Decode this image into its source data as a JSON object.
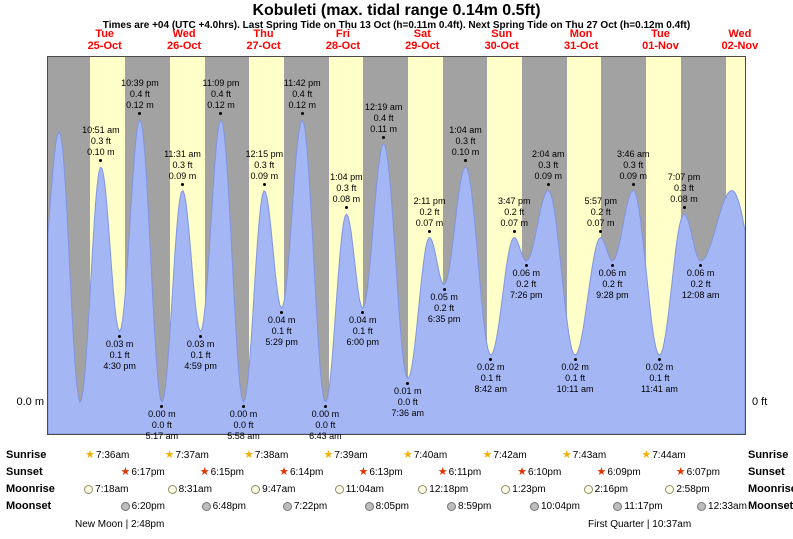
{
  "header": {
    "title": "Kobuleti (max. tidal range 0.14m 0.5ft)",
    "subtitle": "Times are +04 (UTC +4.0hrs). Last Spring Tide on Thu 13 Oct (h=0.11m 0.4ft). Next Spring Tide on Thu 27 Oct (h=0.12m 0.4ft)"
  },
  "chart_data": {
    "type": "area",
    "title": "Kobuleti (max. tidal range 0.14m 0.5ft)",
    "left_axis_label": "0.0 m",
    "right_axis_label": "0 ft",
    "ylim_m": [
      0,
      0.155
    ],
    "days": [
      {
        "name": "Tue",
        "date": "25-Oct"
      },
      {
        "name": "Wed",
        "date": "26-Oct"
      },
      {
        "name": "Thu",
        "date": "27-Oct"
      },
      {
        "name": "Fri",
        "date": "28-Oct"
      },
      {
        "name": "Sat",
        "date": "29-Oct"
      },
      {
        "name": "Sun",
        "date": "30-Oct"
      },
      {
        "name": "Mon",
        "date": "31-Oct"
      },
      {
        "name": "Tue",
        "date": "01-Nov"
      },
      {
        "name": "Wed",
        "date": "02-Nov"
      }
    ],
    "extremes": [
      {
        "t": -0.35,
        "h": 0.03,
        "type": "L"
      },
      {
        "t": -0.073,
        "h": 0.115,
        "type": "H"
      },
      {
        "t": 0.191,
        "h": 0.0,
        "type": "L"
      },
      {
        "t": 0.4521,
        "h": 0.1,
        "type": "H",
        "lines": [
          "10:51 am",
          "0.3 ft",
          "0.10 m"
        ]
      },
      {
        "t": 0.6875,
        "h": 0.03,
        "type": "L",
        "lines": [
          "0.03 m",
          "0.1 ft",
          "4:30 pm"
        ]
      },
      {
        "t": 0.9438,
        "h": 0.12,
        "type": "H",
        "lines": [
          "10:39 pm",
          "0.4 ft",
          "0.12 m"
        ]
      },
      {
        "t": 1.2201,
        "h": 0.0,
        "type": "L",
        "lines": [
          "0.00 m",
          "0.0 ft",
          "5:17 am"
        ]
      },
      {
        "t": 1.4799,
        "h": 0.09,
        "type": "H",
        "lines": [
          "11:31 am",
          "0.3 ft",
          "0.09 m"
        ]
      },
      {
        "t": 1.7076,
        "h": 0.03,
        "type": "L",
        "lines": [
          "0.03 m",
          "0.1 ft",
          "4:59 pm"
        ]
      },
      {
        "t": 1.9646,
        "h": 0.12,
        "type": "H",
        "lines": [
          "11:09 pm",
          "0.4 ft",
          "0.12 m"
        ]
      },
      {
        "t": 2.2486,
        "h": 0.0,
        "type": "L",
        "lines": [
          "0.00 m",
          "0.0 ft",
          "5:58 am"
        ]
      },
      {
        "t": 2.5104,
        "h": 0.09,
        "type": "H",
        "lines": [
          "12:15 pm",
          "0.3 ft",
          "0.09 m"
        ]
      },
      {
        "t": 2.7285,
        "h": 0.04,
        "type": "L",
        "lines": [
          "0.04 m",
          "0.1 ft",
          "5:29 pm"
        ]
      },
      {
        "t": 2.9875,
        "h": 0.12,
        "type": "H",
        "lines": [
          "11:42 pm",
          "0.4 ft",
          "0.12 m"
        ]
      },
      {
        "t": 3.2799,
        "h": 0.0,
        "type": "L",
        "lines": [
          "0.00 m",
          "0.0 ft",
          "6:43 am"
        ]
      },
      {
        "t": 3.5444,
        "h": 0.08,
        "type": "H",
        "lines": [
          "1:04 pm",
          "0.3 ft",
          "0.08 m"
        ]
      },
      {
        "t": 3.75,
        "h": 0.04,
        "type": "L",
        "lines": [
          "0.04 m",
          "0.1 ft",
          "6:00 pm"
        ]
      },
      {
        "t": 4.0132,
        "h": 0.11,
        "type": "H",
        "lines": [
          "12:19 am",
          "0.4 ft",
          "0.11 m"
        ]
      },
      {
        "t": 4.3167,
        "h": 0.01,
        "type": "L",
        "lines": [
          "0.01 m",
          "0.0 ft",
          "7:36 am"
        ]
      },
      {
        "t": 4.591,
        "h": 0.07,
        "type": "H",
        "lines": [
          "2:11 pm",
          "0.2 ft",
          "0.07 m"
        ]
      },
      {
        "t": 4.7743,
        "h": 0.05,
        "type": "L",
        "lines": [
          "0.05 m",
          "0.2 ft",
          "6:35 pm"
        ]
      },
      {
        "t": 5.0444,
        "h": 0.1,
        "type": "H",
        "lines": [
          "1:04 am",
          "0.3 ft",
          "0.10 m"
        ]
      },
      {
        "t": 5.3625,
        "h": 0.02,
        "type": "L",
        "lines": [
          "0.02 m",
          "0.1 ft",
          "8:42 am"
        ]
      },
      {
        "t": 5.6576,
        "h": 0.07,
        "type": "H",
        "lines": [
          "3:47 pm",
          "0.2 ft",
          "0.07 m"
        ]
      },
      {
        "t": 5.8097,
        "h": 0.06,
        "type": "L",
        "lines": [
          "0.06 m",
          "0.2 ft",
          "7:26 pm"
        ]
      },
      {
        "t": 6.0861,
        "h": 0.09,
        "type": "H",
        "lines": [
          "2:04 am",
          "0.3 ft",
          "0.09 m"
        ]
      },
      {
        "t": 6.4243,
        "h": 0.02,
        "type": "L",
        "lines": [
          "0.02 m",
          "0.1 ft",
          "10:11 am"
        ]
      },
      {
        "t": 6.7479,
        "h": 0.07,
        "type": "H",
        "lines": [
          "5:57 pm",
          "0.2 ft",
          "0.07 m"
        ]
      },
      {
        "t": 6.8944,
        "h": 0.06,
        "type": "L",
        "lines": [
          "0.06 m",
          "0.2 ft",
          "9:28 pm"
        ]
      },
      {
        "t": 7.1569,
        "h": 0.09,
        "type": "H",
        "lines": [
          "3:46 am",
          "0.3 ft",
          "0.09 m"
        ]
      },
      {
        "t": 7.4868,
        "h": 0.02,
        "type": "L",
        "lines": [
          "0.02 m",
          "0.1 ft",
          "11:41 am"
        ]
      },
      {
        "t": 7.7965,
        "h": 0.08,
        "type": "H",
        "lines": [
          "7:07 pm",
          "0.3 ft",
          "0.08 m"
        ]
      },
      {
        "t": 8.0056,
        "h": 0.06,
        "type": "L",
        "lines": [
          "0.06 m",
          "0.2 ft",
          "12:08 am"
        ]
      },
      {
        "t": 8.4,
        "h": 0.09,
        "type": "H"
      },
      {
        "t": 8.9,
        "h": 0.02,
        "type": "L"
      }
    ],
    "daylight": [
      {
        "sunrise": 7.6,
        "sunset": 18.283
      },
      {
        "sunrise": 7.617,
        "sunset": 18.25
      },
      {
        "sunrise": 7.633,
        "sunset": 18.233
      },
      {
        "sunrise": 7.65,
        "sunset": 18.217
      },
      {
        "sunrise": 7.667,
        "sunset": 18.183
      },
      {
        "sunrise": 7.7,
        "sunset": 18.167
      },
      {
        "sunrise": 7.717,
        "sunset": 18.15
      },
      {
        "sunrise": 7.733,
        "sunset": 18.117
      },
      {
        "sunrise": 7.75,
        "sunset": 18.1
      }
    ],
    "colors": {
      "night_band": "#a2a2a2",
      "day_band": "#ffffc9",
      "tide_fill": "#a4b6f4",
      "tide_stroke": "#8195e0",
      "date_text": "#ff0000",
      "sunrise_star": "#f2b000",
      "sunset_star": "#e03400",
      "moonrise_fill": "#fffbe8",
      "moonrise_border": "#8f8f60",
      "moonset_fill": "#bdbdbd",
      "moonset_border": "#777777"
    }
  },
  "sun_moon": {
    "rows": [
      {
        "label": "Sunrise",
        "icon": "sunrise",
        "entries": [
          {
            "day": 0,
            "time": "7:36am"
          },
          {
            "day": 1,
            "time": "7:37am"
          },
          {
            "day": 2,
            "time": "7:38am"
          },
          {
            "day": 3,
            "time": "7:39am"
          },
          {
            "day": 4,
            "time": "7:40am"
          },
          {
            "day": 5,
            "time": "7:42am"
          },
          {
            "day": 6,
            "time": "7:43am"
          },
          {
            "day": 7,
            "time": "7:44am"
          }
        ]
      },
      {
        "label": "Sunset",
        "icon": "sunset",
        "entries": [
          {
            "day": 0,
            "time": "6:17pm"
          },
          {
            "day": 1,
            "time": "6:15pm"
          },
          {
            "day": 2,
            "time": "6:14pm"
          },
          {
            "day": 3,
            "time": "6:13pm"
          },
          {
            "day": 4,
            "time": "6:11pm"
          },
          {
            "day": 5,
            "time": "6:10pm"
          },
          {
            "day": 6,
            "time": "6:09pm"
          },
          {
            "day": 7,
            "time": "6:07pm"
          }
        ]
      },
      {
        "label": "Moonrise",
        "icon": "moonrise",
        "entries": [
          {
            "day": 0,
            "time": "7:18am"
          },
          {
            "day": 1,
            "time": "8:31am"
          },
          {
            "day": 2,
            "time": "9:47am"
          },
          {
            "day": 3,
            "time": "11:04am"
          },
          {
            "day": 4,
            "time": "12:18pm"
          },
          {
            "day": 5,
            "time": "1:23pm"
          },
          {
            "day": 6,
            "time": "2:16pm"
          },
          {
            "day": 7,
            "time": "2:58pm"
          }
        ]
      },
      {
        "label": "Moonset",
        "icon": "moonset",
        "entries": [
          {
            "day": 0,
            "time": "6:20pm"
          },
          {
            "day": 1,
            "time": "6:48pm"
          },
          {
            "day": 2,
            "time": "7:22pm"
          },
          {
            "day": 3,
            "time": "8:05pm"
          },
          {
            "day": 4,
            "time": "8:59pm"
          },
          {
            "day": 5,
            "time": "10:04pm"
          },
          {
            "day": 6,
            "time": "11:17pm"
          },
          {
            "day": 8,
            "time": "12:33am"
          }
        ]
      }
    ],
    "phase_left": "New Moon | 2:48pm",
    "phase_right": "First Quarter | 10:37am"
  }
}
